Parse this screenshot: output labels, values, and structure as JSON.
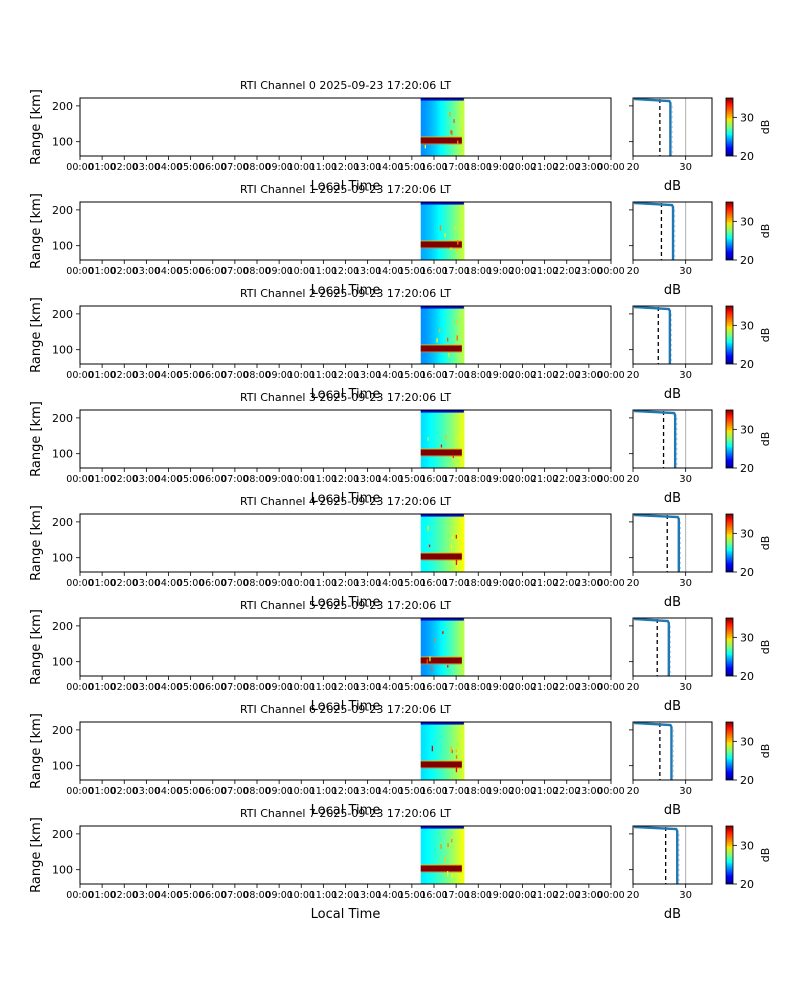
{
  "figure": {
    "panel_count": 8
  },
  "chart_data": {
    "type": "heatmap",
    "colormap": "jet",
    "shared": {
      "xlabel": "Local Time",
      "ylabel": "Range [km]",
      "x_ticks": [
        "00:00",
        "01:00",
        "02:00",
        "03:00",
        "04:00",
        "05:00",
        "06:00",
        "07:00",
        "08:00",
        "09:00",
        "10:00",
        "11:00",
        "12:00",
        "13:00",
        "14:00",
        "15:00",
        "16:00",
        "17:00",
        "18:00",
        "19:00",
        "20:00",
        "21:00",
        "22:00",
        "23:00",
        "00:00"
      ],
      "xlim_hours": [
        0,
        24
      ],
      "y_ticks": [
        100,
        200
      ],
      "ylim_km": [
        60,
        222
      ],
      "data_time_span_hours": [
        15.4,
        17.35
      ],
      "echo_band_km": [
        95,
        112
      ],
      "noise_top_km": 218,
      "profile": {
        "xlabel": "dB",
        "x_ticks": [
          20,
          30
        ],
        "xlim_db": [
          20,
          35
        ],
        "reference_line_db": 30,
        "reference_line_color": "#b0b0b0",
        "line_color": "#1f77b4",
        "dashed_color": "#000000"
      },
      "colorbar": {
        "label": "dB",
        "ticks": [
          20,
          30
        ],
        "range_db": [
          20,
          35
        ]
      }
    },
    "panels": [
      {
        "title": "RTI Channel 0 2025-09-23 17:20:06 LT",
        "profile_db": 27.1,
        "dashed_db": 25.1,
        "noise_start_db": 20.2,
        "noise_end_db": 26.9,
        "bg_low_db": 24.0,
        "bg_high_db": 28.5
      },
      {
        "title": "RTI Channel 1 2025-09-23 17:20:06 LT",
        "profile_db": 27.6,
        "dashed_db": 25.4,
        "noise_start_db": 20.2,
        "noise_end_db": 27.4,
        "bg_low_db": 24.4,
        "bg_high_db": 28.5
      },
      {
        "title": "RTI Channel 2 2025-09-23 17:20:06 LT",
        "profile_db": 27.0,
        "dashed_db": 24.8,
        "noise_start_db": 20.2,
        "noise_end_db": 26.8,
        "bg_low_db": 24.0,
        "bg_high_db": 28.3
      },
      {
        "title": "RTI Channel 3 2025-09-23 17:20:06 LT",
        "profile_db": 28.0,
        "dashed_db": 25.8,
        "noise_start_db": 20.2,
        "noise_end_db": 27.8,
        "bg_low_db": 25.2,
        "bg_high_db": 29.0
      },
      {
        "title": "RTI Channel 4 2025-09-23 17:20:06 LT",
        "profile_db": 28.7,
        "dashed_db": 26.5,
        "noise_start_db": 20.2,
        "noise_end_db": 28.5,
        "bg_low_db": 25.6,
        "bg_high_db": 29.3
      },
      {
        "title": "RTI Channel 5 2025-09-23 17:20:06 LT",
        "profile_db": 26.8,
        "dashed_db": 24.6,
        "noise_start_db": 20.2,
        "noise_end_db": 26.6,
        "bg_low_db": 24.0,
        "bg_high_db": 28.3
      },
      {
        "title": "RTI Channel 6 2025-09-23 17:20:06 LT",
        "profile_db": 27.3,
        "dashed_db": 25.1,
        "noise_start_db": 20.2,
        "noise_end_db": 27.1,
        "bg_low_db": 25.2,
        "bg_high_db": 28.8
      },
      {
        "title": "RTI Channel 7 2025-09-23 17:20:06 LT",
        "profile_db": 28.4,
        "dashed_db": 26.2,
        "noise_start_db": 20.2,
        "noise_end_db": 28.2,
        "bg_low_db": 25.4,
        "bg_high_db": 29.2
      }
    ]
  }
}
